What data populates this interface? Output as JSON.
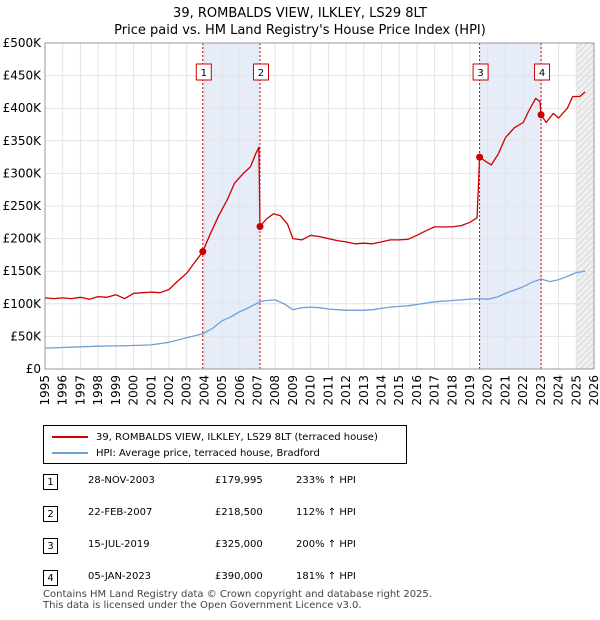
{
  "title_line1": "39, ROMBALDS VIEW, ILKLEY, LS29 8LT",
  "title_line2": "Price paid vs. HM Land Registry's House Price Index (HPI)",
  "chart_data": {
    "type": "line",
    "xlim": [
      1995,
      2026
    ],
    "ylim": [
      0,
      500000
    ],
    "y_ticks": [
      0,
      50000,
      100000,
      150000,
      200000,
      250000,
      300000,
      350000,
      400000,
      450000,
      500000
    ],
    "y_tick_labels": [
      "£0",
      "£50K",
      "£100K",
      "£150K",
      "£200K",
      "£250K",
      "£300K",
      "£350K",
      "£400K",
      "£450K",
      "£500K"
    ],
    "x_ticks": [
      1995,
      1996,
      1997,
      1998,
      1999,
      2000,
      2001,
      2002,
      2003,
      2004,
      2005,
      2006,
      2007,
      2008,
      2009,
      2010,
      2011,
      2012,
      2013,
      2014,
      2015,
      2016,
      2017,
      2018,
      2019,
      2020,
      2021,
      2022,
      2023,
      2024,
      2025,
      2026
    ],
    "grid": true,
    "forecast_start": 2025.0,
    "shaded_periods": [
      [
        2003.91,
        2007.14
      ],
      [
        2019.54,
        2023.01
      ]
    ],
    "series": [
      {
        "name": "39, ROMBALDS VIEW, ILKLEY, LS29 8LT (terraced house)",
        "color": "#cc0000",
        "points": [
          [
            1995.0,
            109000
          ],
          [
            1995.5,
            108000
          ],
          [
            1996.0,
            109000
          ],
          [
            1996.5,
            108000
          ],
          [
            1997.0,
            110000
          ],
          [
            1997.5,
            107000
          ],
          [
            1998.0,
            111000
          ],
          [
            1998.5,
            110000
          ],
          [
            1999.0,
            114000
          ],
          [
            1999.5,
            108000
          ],
          [
            2000.0,
            116000
          ],
          [
            2000.5,
            117000
          ],
          [
            2001.0,
            118000
          ],
          [
            2001.5,
            117000
          ],
          [
            2002.0,
            122000
          ],
          [
            2002.5,
            135000
          ],
          [
            2003.0,
            147000
          ],
          [
            2003.5,
            165000
          ],
          [
            2003.91,
            179995
          ],
          [
            2004.3,
            205000
          ],
          [
            2004.8,
            235000
          ],
          [
            2005.3,
            260000
          ],
          [
            2005.7,
            285000
          ],
          [
            2006.2,
            300000
          ],
          [
            2006.6,
            310000
          ],
          [
            2006.9,
            330000
          ],
          [
            2007.08,
            340000
          ],
          [
            2007.14,
            218500
          ],
          [
            2007.5,
            230000
          ],
          [
            2007.9,
            238000
          ],
          [
            2008.3,
            235000
          ],
          [
            2008.7,
            222000
          ],
          [
            2009.0,
            200000
          ],
          [
            2009.5,
            198000
          ],
          [
            2010.0,
            205000
          ],
          [
            2010.5,
            203000
          ],
          [
            2011.0,
            200000
          ],
          [
            2011.5,
            197000
          ],
          [
            2012.0,
            195000
          ],
          [
            2012.5,
            192000
          ],
          [
            2013.0,
            193000
          ],
          [
            2013.5,
            192000
          ],
          [
            2014.0,
            195000
          ],
          [
            2014.5,
            198000
          ],
          [
            2015.0,
            198000
          ],
          [
            2015.5,
            199000
          ],
          [
            2016.0,
            205000
          ],
          [
            2016.5,
            212000
          ],
          [
            2017.0,
            218000
          ],
          [
            2017.5,
            218000
          ],
          [
            2018.0,
            218000
          ],
          [
            2018.5,
            220000
          ],
          [
            2019.0,
            225000
          ],
          [
            2019.4,
            232000
          ],
          [
            2019.54,
            325000
          ],
          [
            2019.8,
            320000
          ],
          [
            2020.2,
            313000
          ],
          [
            2020.6,
            330000
          ],
          [
            2021.0,
            355000
          ],
          [
            2021.5,
            370000
          ],
          [
            2022.0,
            378000
          ],
          [
            2022.3,
            395000
          ],
          [
            2022.7,
            415000
          ],
          [
            2022.95,
            410000
          ],
          [
            2023.01,
            390000
          ],
          [
            2023.3,
            378000
          ],
          [
            2023.7,
            392000
          ],
          [
            2024.0,
            385000
          ],
          [
            2024.5,
            400000
          ],
          [
            2024.8,
            418000
          ],
          [
            2025.2,
            418000
          ],
          [
            2025.5,
            425000
          ]
        ]
      },
      {
        "name": "HPI: Average price, terraced house, Bradford",
        "color": "#6fa0d8",
        "points": [
          [
            1995.0,
            32000
          ],
          [
            1996.0,
            33000
          ],
          [
            1997.0,
            34000
          ],
          [
            1998.0,
            35000
          ],
          [
            1999.0,
            35500
          ],
          [
            2000.0,
            36000
          ],
          [
            2001.0,
            37000
          ],
          [
            2002.0,
            41000
          ],
          [
            2003.0,
            48000
          ],
          [
            2003.91,
            54000
          ],
          [
            2004.5,
            63000
          ],
          [
            2005.0,
            74000
          ],
          [
            2005.5,
            80000
          ],
          [
            2006.0,
            88000
          ],
          [
            2006.5,
            94000
          ],
          [
            2007.14,
            103000
          ],
          [
            2007.5,
            105000
          ],
          [
            2008.0,
            106000
          ],
          [
            2008.5,
            100000
          ],
          [
            2009.0,
            91000
          ],
          [
            2009.5,
            94000
          ],
          [
            2010.0,
            95000
          ],
          [
            2010.5,
            94000
          ],
          [
            2011.0,
            92000
          ],
          [
            2011.5,
            91000
          ],
          [
            2012.0,
            90000
          ],
          [
            2012.5,
            90000
          ],
          [
            2013.0,
            90000
          ],
          [
            2013.5,
            91000
          ],
          [
            2014.0,
            93000
          ],
          [
            2014.5,
            95000
          ],
          [
            2015.0,
            96000
          ],
          [
            2015.5,
            97000
          ],
          [
            2016.0,
            99000
          ],
          [
            2016.5,
            101000
          ],
          [
            2017.0,
            103000
          ],
          [
            2017.5,
            104000
          ],
          [
            2018.0,
            105000
          ],
          [
            2018.5,
            106000
          ],
          [
            2019.0,
            107000
          ],
          [
            2019.54,
            108000
          ],
          [
            2020.0,
            107000
          ],
          [
            2020.5,
            110000
          ],
          [
            2021.0,
            116000
          ],
          [
            2021.5,
            121000
          ],
          [
            2022.0,
            126000
          ],
          [
            2022.5,
            133000
          ],
          [
            2023.01,
            138000
          ],
          [
            2023.5,
            134000
          ],
          [
            2024.0,
            137000
          ],
          [
            2024.5,
            142000
          ],
          [
            2025.0,
            148000
          ],
          [
            2025.5,
            150000
          ]
        ]
      }
    ],
    "sales": [
      {
        "label": "1",
        "x": 2003.91,
        "value": 179995
      },
      {
        "label": "2",
        "x": 2007.14,
        "value": 218500
      },
      {
        "label": "3",
        "x": 2019.54,
        "value": 325000
      },
      {
        "label": "4",
        "x": 2023.01,
        "value": 390000
      }
    ]
  },
  "legend": {
    "property_label": "39, ROMBALDS VIEW, ILKLEY, LS29 8LT (terraced house)",
    "hpi_label": "HPI: Average price, terraced house, Bradford",
    "property_color": "#cc0000",
    "hpi_color": "#6fa0d8"
  },
  "sales_table": [
    {
      "num": "1",
      "date": "28-NOV-2003",
      "price": "£179,995",
      "hpi": "233% ↑ HPI"
    },
    {
      "num": "2",
      "date": "22-FEB-2007",
      "price": "£218,500",
      "hpi": "112% ↑ HPI"
    },
    {
      "num": "3",
      "date": "15-JUL-2019",
      "price": "£325,000",
      "hpi": "200% ↑ HPI"
    },
    {
      "num": "4",
      "date": "05-JAN-2023",
      "price": "£390,000",
      "hpi": "181% ↑ HPI"
    }
  ],
  "footer": {
    "line1": "Contains HM Land Registry data © Crown copyright and database right 2025.",
    "line2": "This data is licensed under the Open Government Licence v3.0."
  }
}
